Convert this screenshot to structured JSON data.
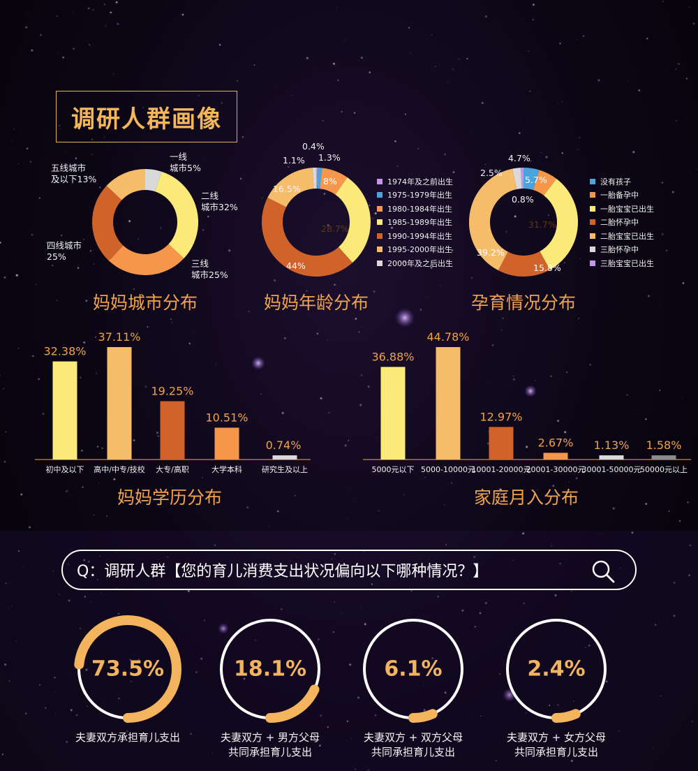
{
  "page_title": "调研人群画像",
  "colors": {
    "accent": "#f0a24c",
    "title_border": "#e8b05a",
    "ring_accent": "#f3b45d",
    "ring_track": "#ffffff"
  },
  "chart_data": [
    {
      "type": "pie",
      "variant": "donut",
      "title": "妈妈城市分布",
      "slices": [
        {
          "label": "一线\n城市5%",
          "value": 5,
          "color": "#d9d9d9"
        },
        {
          "label": "二线\n城市32%",
          "value": 32,
          "color": "#fbe97a"
        },
        {
          "label": "三线\n城市25%",
          "value": 25,
          "color": "#f6964a"
        },
        {
          "label": "四线城市\n25%",
          "value": 25,
          "color": "#d0632a"
        },
        {
          "label": "五线城市\n及以下13%",
          "value": 13,
          "color": "#f5bd6a"
        }
      ]
    },
    {
      "type": "pie",
      "variant": "donut",
      "title": "妈妈年龄分布",
      "slices": [
        {
          "label": "1974年及之前出生",
          "value": 0.4,
          "display": "0.4%",
          "color": "#c893ec"
        },
        {
          "label": "1975-1979年出生",
          "value": 1.3,
          "display": "1.3%",
          "color": "#4aa3db"
        },
        {
          "label": "1980-1984年出生",
          "value": 8,
          "display": "8%",
          "color": "#f6964a"
        },
        {
          "label": "1985-1989年出生",
          "value": 28.7,
          "display": "28.7%",
          "color": "#fbe97a"
        },
        {
          "label": "1990-1994年出生",
          "value": 44,
          "display": "44%",
          "color": "#d0632a"
        },
        {
          "label": "1995-2000年出生",
          "value": 16.5,
          "display": "16.5%",
          "color": "#f5bd6a"
        },
        {
          "label": "2000年及之后出生",
          "value": 1.1,
          "display": "1.1%",
          "color": "#d9d9d9"
        }
      ]
    },
    {
      "type": "pie",
      "variant": "donut",
      "title": "孕育情况分布",
      "slices": [
        {
          "label": "没有孩子",
          "value": 4.7,
          "display": "4.7%",
          "color": "#4aa3db"
        },
        {
          "label": "一胎备孕中",
          "value": 5.7,
          "display": "5.7%",
          "color": "#f6964a"
        },
        {
          "label": "一胎宝宝已出生",
          "value": 31.7,
          "display": "31.7%",
          "color": "#fbe97a"
        },
        {
          "label": "二胎怀孕中",
          "value": 15.8,
          "display": "15.8%",
          "color": "#d0632a"
        },
        {
          "label": "二胎宝宝已出生",
          "value": 39.2,
          "display": "39.2%",
          "color": "#f5bd6a"
        },
        {
          "label": "三胎怀孕中",
          "value": 2.5,
          "display": "2.5%",
          "color": "#d9d9d9"
        },
        {
          "label": "三胎宝宝已出生",
          "value": 0.8,
          "display": "0.8%",
          "color": "#c893ec"
        }
      ]
    },
    {
      "type": "bar",
      "title": "妈妈学历分布",
      "categories": [
        "初中及以下",
        "高中/中专/技校",
        "大专/高职",
        "大学本科",
        "研究生及以上"
      ],
      "values": [
        32.38,
        37.11,
        19.25,
        10.51,
        0.74
      ],
      "labels": [
        "32.38%",
        "37.11%",
        "19.25%",
        "10.51%",
        "0.74%"
      ],
      "colors": [
        "#fbe97a",
        "#f5bd6a",
        "#d0632a",
        "#f6964a",
        "#d9d9d9"
      ]
    },
    {
      "type": "bar",
      "title": "家庭月入分布",
      "categories": [
        "5000元以下",
        "5000-10000元",
        "10001-20000元",
        "20001-30000元",
        "30001-50000元",
        "50000元以上"
      ],
      "values": [
        36.88,
        44.78,
        12.97,
        2.67,
        1.13,
        1.58
      ],
      "labels": [
        "36.88%",
        "44.78%",
        "12.97%",
        "2.67%",
        "1.13%",
        "1.58%"
      ],
      "colors": [
        "#fbe97a",
        "#f5bd6a",
        "#d0632a",
        "#f6964a",
        "#d9d9d9",
        "#8c8c8c"
      ]
    }
  ],
  "question": {
    "text": "Q：调研人群【您的育儿消费支出状况偏向以下哪种情况？】",
    "icon": "search-icon"
  },
  "rings": [
    {
      "value": 73.5,
      "display": "73.5%",
      "label": "夫妻双方承担育儿支出"
    },
    {
      "value": 18.1,
      "display": "18.1%",
      "label": "夫妻双方 + 男方父母\n共同承担育儿支出"
    },
    {
      "value": 6.1,
      "display": "6.1%",
      "label": "夫妻双方 + 双方父母\n共同承担育儿支出"
    },
    {
      "value": 2.4,
      "display": "2.4%",
      "label": "夫妻双方 + 女方父母\n共同承担育儿支出"
    }
  ]
}
